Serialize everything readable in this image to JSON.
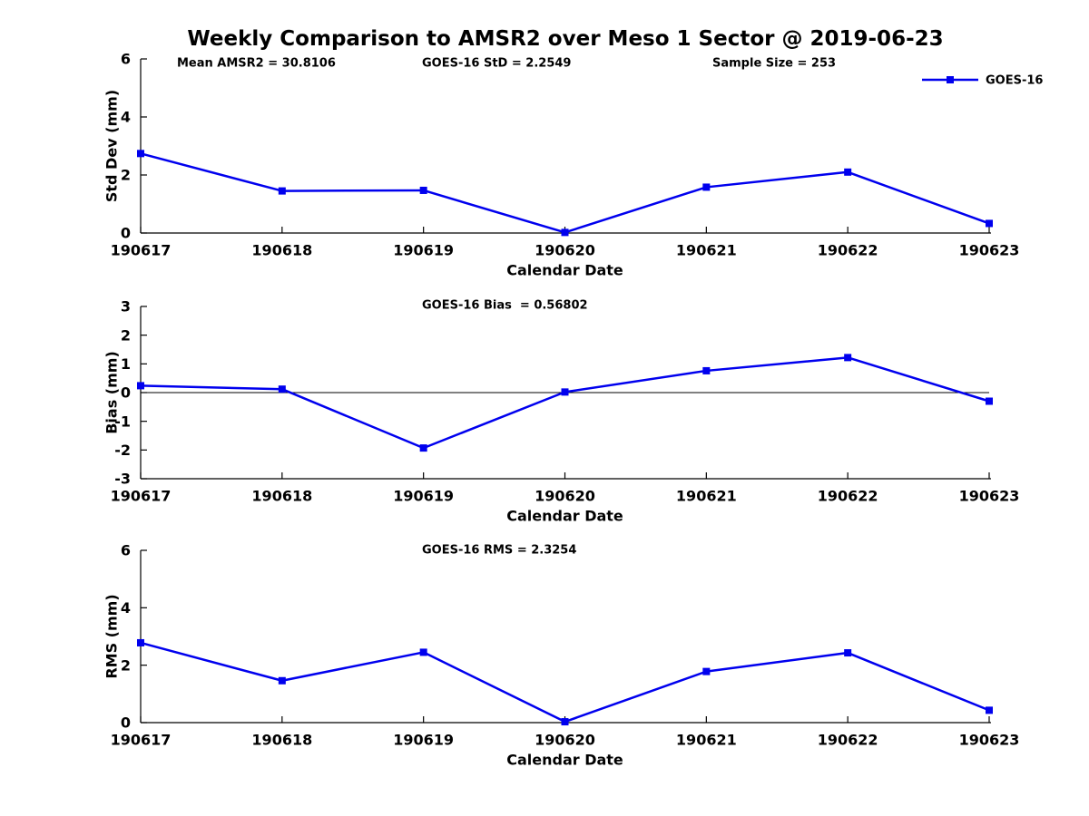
{
  "title": "Weekly Comparison to AMSR2 over Meso 1 Sector @ 2019-06-23",
  "colors": {
    "line": "#0000EE",
    "marker": "#0000EE",
    "axis": "#000000",
    "text": "#000000",
    "background": "#ffffff"
  },
  "legend": {
    "label": "GOES-16"
  },
  "chart_data": [
    {
      "type": "line",
      "name": "std-dev",
      "categories": [
        "190617",
        "190618",
        "190619",
        "190620",
        "190621",
        "190622",
        "190623"
      ],
      "series": [
        {
          "name": "GOES-16",
          "values": [
            2.74,
            1.45,
            1.47,
            0.02,
            1.58,
            2.1,
            0.33
          ]
        }
      ],
      "xlabel": "Calendar Date",
      "ylabel": "Std Dev (mm)",
      "ylim": [
        0,
        6
      ],
      "yticks": [
        0,
        2,
        4,
        6
      ],
      "grid": false,
      "zero_line": false,
      "annotations": [
        {
          "text": "Mean AMSR2 = 30.8106"
        },
        {
          "text": "GOES-16 StD = 2.2549"
        },
        {
          "text": "Sample Size = 253"
        }
      ],
      "legend": {
        "label": "GOES-16",
        "position": "top-right",
        "marker": "square"
      }
    },
    {
      "type": "line",
      "name": "bias",
      "categories": [
        "190617",
        "190618",
        "190619",
        "190620",
        "190621",
        "190622",
        "190623"
      ],
      "series": [
        {
          "name": "GOES-16",
          "values": [
            0.24,
            0.12,
            -1.93,
            0.02,
            0.76,
            1.22,
            -0.3
          ]
        }
      ],
      "xlabel": "Calendar Date",
      "ylabel": "Bias (mm)",
      "ylim": [
        -3,
        3
      ],
      "yticks": [
        -3,
        -2,
        -1,
        0,
        1,
        2,
        3
      ],
      "grid": false,
      "zero_line": true,
      "annotations": [
        {
          "text": "GOES-16 Bias  = 0.56802"
        }
      ]
    },
    {
      "type": "line",
      "name": "rms",
      "categories": [
        "190617",
        "190618",
        "190619",
        "190620",
        "190621",
        "190622",
        "190623"
      ],
      "series": [
        {
          "name": "GOES-16",
          "values": [
            2.78,
            1.46,
            2.45,
            0.03,
            1.78,
            2.43,
            0.43
          ]
        }
      ],
      "xlabel": "Calendar Date",
      "ylabel": "RMS (mm)",
      "ylim": [
        0,
        6
      ],
      "yticks": [
        0,
        2,
        4,
        6
      ],
      "grid": false,
      "zero_line": false,
      "annotations": [
        {
          "text": "GOES-16 RMS = 2.3254"
        }
      ]
    }
  ]
}
